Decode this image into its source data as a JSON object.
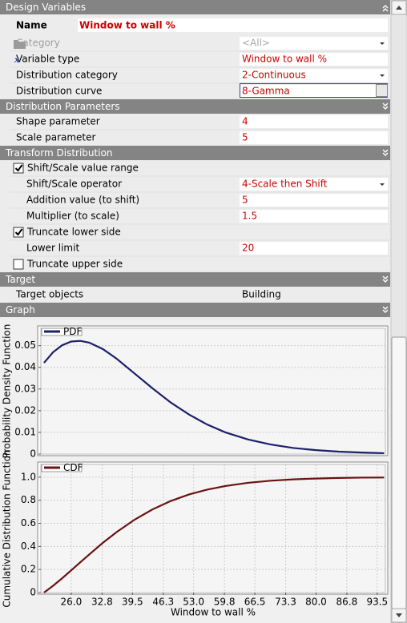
{
  "sections": [
    {
      "title": "Design Variables",
      "name_label": "Name",
      "name_value": "Window to wall %",
      "rows": [
        {
          "label": "Category",
          "value": "<All>",
          "value_color": "#a8a8a8",
          "dropdown": true,
          "disabled": true
        },
        {
          "label": "Variable type",
          "value": "Window to wall %",
          "value_color": "#cc0000"
        },
        {
          "label": "Distribution category",
          "value": "2-Continuous",
          "value_color": "#cc0000",
          "dropdown": true
        },
        {
          "label": "Distribution curve",
          "value": "8-Gamma",
          "value_color": "#cc0000",
          "dropdown": true
        }
      ]
    },
    {
      "title": "Distribution Parameters",
      "rows": [
        {
          "label": "Shape parameter",
          "value": 4,
          "value_color": "#cc0000"
        },
        {
          "label": "Scale parameter",
          "value": 5,
          "value_color": "#cc0000"
        }
      ]
    },
    {
      "title": "Transform Distribution",
      "rows": [
        {
          "label": "Shift/Scale value range",
          "checked": true
        },
        {
          "label": "Shift/Scale operator",
          "value": "4-Scale then Shift",
          "value_color": "#cc0000",
          "dropdown": true
        },
        {
          "label": "Addition value (to shift)",
          "value": 5,
          "value_color": "#cc0000"
        },
        {
          "label": "Multiplier (to scale)",
          "value": 1.5,
          "value_color": "#cc0000"
        },
        {
          "label": "Truncate lower side",
          "checked": true
        },
        {
          "label": "Lower limit",
          "value": 20,
          "value_color": "#cc0000"
        },
        {
          "label": "Truncate upper side",
          "checked": false
        }
      ]
    },
    {
      "title": "Target",
      "rows": [
        {
          "label": "Target objects",
          "value": "Building",
          "value_color": "#000000"
        }
      ]
    },
    {
      "title": "Graph",
      "rows": []
    }
  ],
  "chart_data": [
    {
      "type": "line",
      "ylabel": "Probability Density Function",
      "x": [
        20,
        22,
        24,
        26,
        28,
        30,
        33,
        36,
        40,
        44,
        48,
        52,
        56,
        60,
        65,
        70,
        75,
        80,
        85,
        90,
        95
      ],
      "series": [
        {
          "name": "PDF",
          "color": "#1c1f6b",
          "values": [
            0.0421,
            0.047,
            0.0502,
            0.0519,
            0.0522,
            0.0514,
            0.0484,
            0.044,
            0.0371,
            0.0302,
            0.0237,
            0.0182,
            0.0136,
            0.01,
            0.0067,
            0.0044,
            0.0028,
            0.0018,
            0.0011,
            0.0007,
            0.0004
          ]
        }
      ],
      "xlim": [
        19.3,
        95.3
      ],
      "ylim": [
        0,
        0.058
      ],
      "yticks": [
        0,
        0.01,
        0.02,
        0.03,
        0.04,
        0.05
      ],
      "grid": true
    },
    {
      "type": "line",
      "ylabel": "Cumulative Distribution Function",
      "xlabel": "Window to wall %",
      "x": [
        20,
        22,
        24,
        26,
        28,
        30,
        33,
        36,
        40,
        44,
        48,
        52,
        56,
        60,
        65,
        70,
        75,
        80,
        85,
        90,
        95
      ],
      "series": [
        {
          "name": "CDF",
          "color": "#6b1212",
          "values": [
            0,
            0.059,
            0.124,
            0.193,
            0.262,
            0.331,
            0.432,
            0.524,
            0.632,
            0.722,
            0.794,
            0.85,
            0.892,
            0.923,
            0.951,
            0.969,
            0.981,
            0.988,
            0.993,
            0.996,
            0.997
          ]
        }
      ],
      "xlim": [
        19.3,
        95.3
      ],
      "ylim": [
        0,
        1.11
      ],
      "xticks": [
        {
          "value": 26,
          "label": "26.0"
        },
        32.8,
        39.5,
        46.3,
        {
          "value": 53,
          "label": "53.0"
        },
        59.8,
        66.5,
        73.3,
        {
          "value": 80,
          "label": "80.0"
        },
        86.8,
        93.5
      ],
      "yticks": [
        0,
        0.2,
        0.4,
        0.6,
        0.8,
        {
          "value": 1,
          "label": "1.0"
        }
      ],
      "grid": true
    }
  ]
}
